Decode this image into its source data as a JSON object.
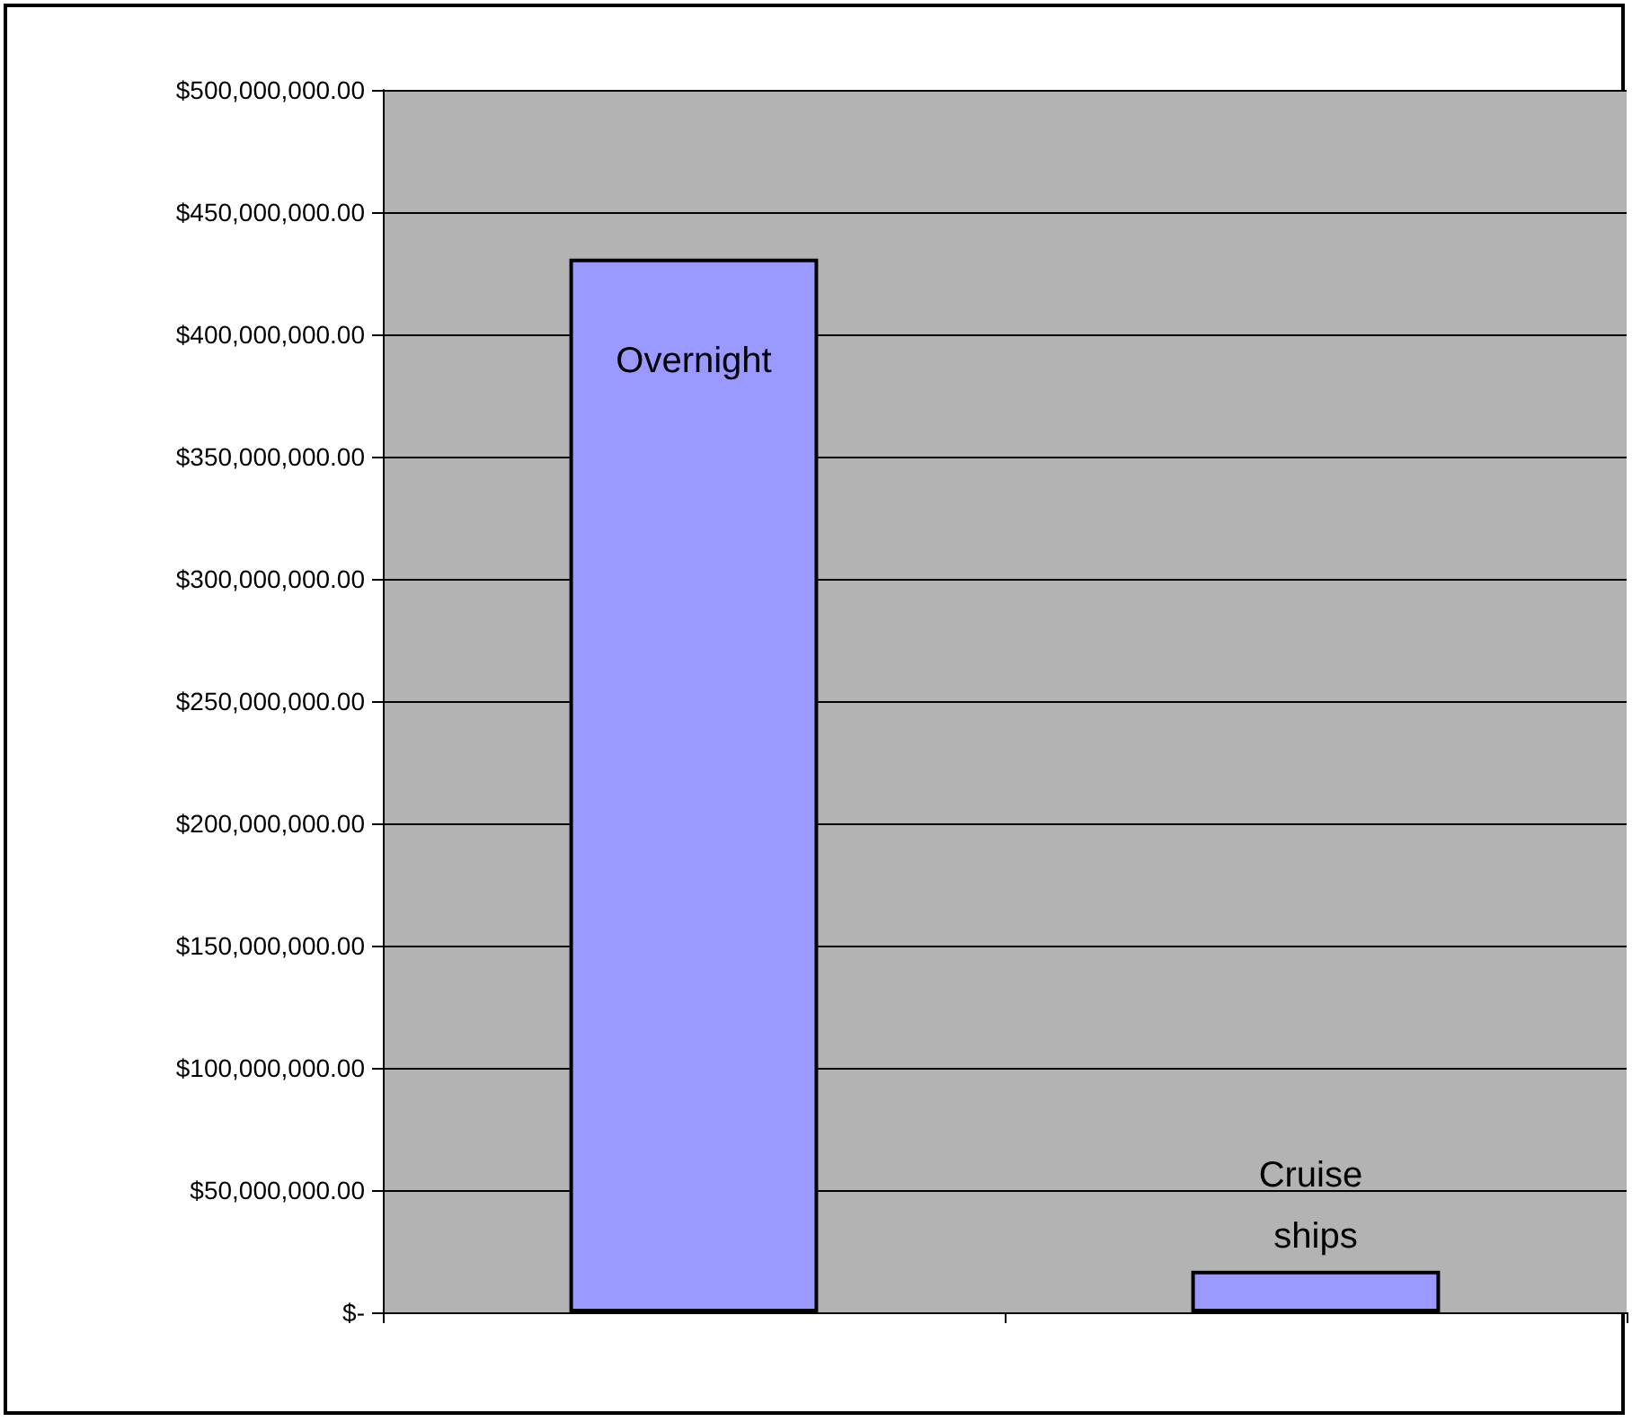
{
  "chart_data": {
    "type": "bar",
    "categories": [
      "Overnight",
      "Cruise ships"
    ],
    "values": [
      431000000,
      17000000
    ],
    "color": "#9999ff",
    "ylim": [
      0,
      500000000
    ],
    "yticks": [
      {
        "value": 0,
        "label": "$-"
      },
      {
        "value": 50000000,
        "label": "$50,000,000.00"
      },
      {
        "value": 100000000,
        "label": "$100,000,000.00"
      },
      {
        "value": 150000000,
        "label": "$150,000,000.00"
      },
      {
        "value": 200000000,
        "label": "$200,000,000.00"
      },
      {
        "value": 250000000,
        "label": "$250,000,000.00"
      },
      {
        "value": 300000000,
        "label": "$300,000,000.00"
      },
      {
        "value": 350000000,
        "label": "$350,000,000.00"
      },
      {
        "value": 400000000,
        "label": "$400,000,000.00"
      },
      {
        "value": 450000000,
        "label": "$450,000,000.00"
      },
      {
        "value": 500000000,
        "label": "$500,000,000.00"
      }
    ],
    "grid": "y"
  }
}
